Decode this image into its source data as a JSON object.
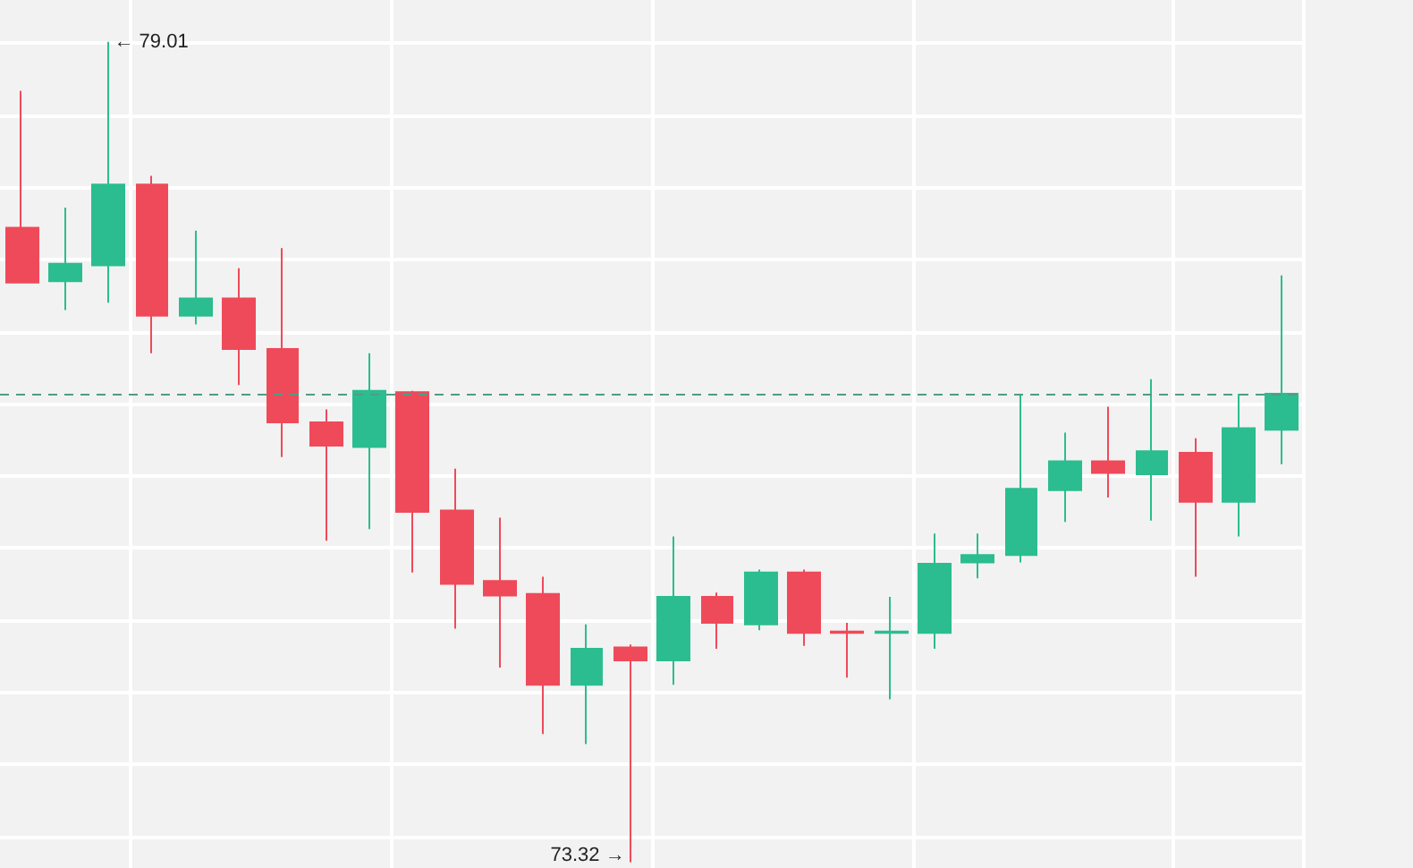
{
  "chart_data": {
    "type": "candlestick",
    "categories": [
      null,
      null,
      null,
      null,
      null,
      null,
      null,
      null,
      null,
      null,
      null,
      null,
      null,
      null,
      null,
      null,
      null,
      null,
      null,
      null,
      null,
      null,
      null,
      null,
      null,
      null,
      null,
      null,
      null,
      null
    ],
    "ohlc": [
      [
        77.72,
        78.67,
        77.34,
        77.34
      ],
      [
        77.35,
        77.86,
        77.15,
        77.47
      ],
      [
        77.46,
        79.01,
        77.2,
        78.02
      ],
      [
        78.02,
        78.08,
        76.85,
        77.11
      ],
      [
        77.11,
        77.7,
        77.05,
        77.23
      ],
      [
        77.23,
        77.44,
        76.63,
        76.88
      ],
      [
        76.88,
        77.58,
        76.13,
        76.37
      ],
      [
        76.37,
        76.46,
        75.55,
        76.21
      ],
      [
        76.2,
        76.85,
        75.63,
        76.59
      ],
      [
        76.58,
        76.59,
        75.33,
        75.75
      ],
      [
        75.76,
        76.05,
        74.94,
        75.25
      ],
      [
        75.27,
        75.71,
        74.67,
        75.17
      ],
      [
        75.18,
        75.3,
        74.21,
        74.55
      ],
      [
        74.55,
        74.97,
        74.14,
        74.8
      ],
      [
        74.81,
        74.83,
        73.32,
        74.72
      ],
      [
        74.72,
        75.58,
        74.55,
        75.16
      ],
      [
        75.16,
        75.19,
        74.8,
        74.98
      ],
      [
        74.97,
        75.35,
        74.93,
        75.33
      ],
      [
        75.33,
        75.35,
        74.82,
        74.91
      ],
      [
        74.92,
        74.98,
        74.6,
        74.91
      ],
      [
        74.91,
        75.16,
        74.45,
        74.92
      ],
      [
        74.91,
        75.6,
        74.8,
        75.39
      ],
      [
        75.4,
        75.6,
        75.29,
        75.45
      ],
      [
        75.45,
        76.57,
        75.4,
        75.91
      ],
      [
        75.9,
        76.3,
        75.68,
        76.1
      ],
      [
        76.1,
        76.48,
        75.85,
        76.02
      ],
      [
        76.01,
        76.67,
        75.69,
        76.17
      ],
      [
        76.16,
        76.26,
        75.3,
        75.82
      ],
      [
        75.82,
        76.57,
        75.58,
        76.33
      ],
      [
        76.32,
        77.39,
        76.08,
        76.57
      ]
    ],
    "colors": [
      "#ef4a5a",
      "#2bbd8f",
      "#2bbd8f",
      "#ef4a5a",
      "#2bbd8f",
      "#ef4a5a",
      "#ef4a5a",
      "#ef4a5a",
      "#2bbd8f",
      "#ef4a5a",
      "#ef4a5a",
      "#ef4a5a",
      "#ef4a5a",
      "#2bbd8f",
      "#ef4a5a",
      "#2bbd8f",
      "#ef4a5a",
      "#2bbd8f",
      "#ef4a5a",
      "#ef4a5a",
      "#2bbd8f",
      "#2bbd8f",
      "#2bbd8f",
      "#2bbd8f",
      "#2bbd8f",
      "#ef4a5a",
      "#2bbd8f",
      "#ef4a5a",
      "#2bbd8f",
      "#2bbd8f"
    ],
    "relative": false,
    "ylim": [
      73.28,
      79.3
    ],
    "yticks": [
      {
        "value": 73.5,
        "label": null
      },
      {
        "value": 74,
        "label": null
      },
      {
        "value": 74.5,
        "label": null
      },
      {
        "value": 75,
        "label": null
      },
      {
        "value": 75.5,
        "label": null
      },
      {
        "value": 76,
        "label": null
      },
      {
        "value": 76.5,
        "label": null
      },
      {
        "value": 77,
        "label": null
      },
      {
        "value": 77.5,
        "label": null
      },
      {
        "value": 78,
        "label": null
      },
      {
        "value": 78.5,
        "label": null
      },
      {
        "value": 79,
        "label": null
      }
    ],
    "grid": true,
    "tick_labels": false,
    "ref_lines": [
      {
        "axis": "y",
        "value": 76.57,
        "label": null,
        "color": "#4f9c85",
        "line_style": "dashed"
      }
    ],
    "annotations": [
      "← 79.01",
      "73.32 →"
    ]
  }
}
